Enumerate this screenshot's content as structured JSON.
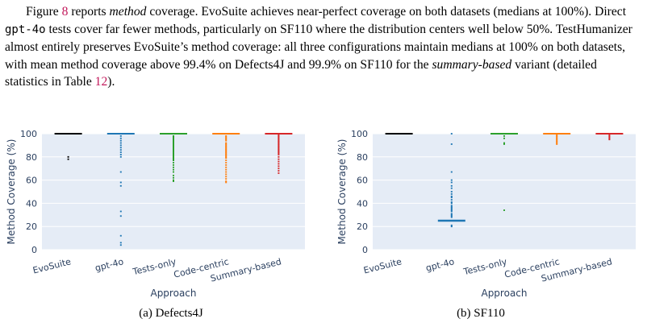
{
  "paragraph": {
    "t1": "Figure ",
    "ref_fig": "8",
    "t2": " reports ",
    "em1": "method",
    "t3": " coverage. EvoSuite achieves near-perfect coverage on both datasets (medians at 100%). Direct ",
    "code": "gpt-4o",
    "t4": " tests cover far fewer methods, particularly on SF110 where the distribution centers well below 50%. TestHumanizer almost entirely preserves EvoSuite’s method coverage: all three configurations maintain medians at 100% on both datasets, with mean method coverage above 99.4% on Defects4J and 99.9% on SF110 for the ",
    "em2": "summary-based",
    "t5": " variant (detailed statistics in Table ",
    "ref_table": "12",
    "t6": ")."
  },
  "captions": {
    "a": "(a) Defects4J",
    "b": "(b) SF110"
  },
  "colors": {
    "plot_bg": "#e5ecf6",
    "grid": "#ffffff",
    "series": [
      "#000000",
      "#1f77b4",
      "#2ca02c",
      "#ff7f0e",
      "#d62728"
    ]
  },
  "chart_data": [
    {
      "type": "box",
      "subfigure": "Defects4J",
      "xlabel": "Approach",
      "ylabel": "Method Coverage (%)",
      "ylim": [
        0,
        100
      ],
      "yticks": [
        0,
        20,
        40,
        60,
        80,
        100
      ],
      "categories": [
        "EvoSuite",
        "gpt-4o",
        "Tests-only",
        "Code-centric",
        "Summary-based"
      ],
      "grid": true,
      "medians": [
        100,
        100,
        100,
        100,
        100
      ],
      "q1": [
        100,
        100,
        100,
        100,
        100
      ],
      "outliers": [
        [
          80,
          78
        ],
        [
          98,
          96,
          94,
          92,
          90,
          88,
          86,
          84,
          82,
          80,
          67,
          58,
          55,
          33,
          29,
          12,
          6,
          4
        ],
        [
          98,
          97,
          96,
          95,
          94,
          93,
          92,
          91,
          90,
          89,
          88,
          87,
          86,
          85,
          84,
          83,
          82,
          81,
          80,
          79,
          78,
          77,
          75,
          73,
          71,
          69,
          67,
          64,
          62,
          60,
          59
        ],
        [
          98,
          97,
          96,
          95,
          94,
          92,
          91,
          90,
          89,
          88,
          87,
          86,
          85,
          84,
          83,
          82,
          81,
          80,
          79,
          77,
          75,
          73,
          71,
          69,
          67,
          65,
          63,
          61,
          59,
          58
        ],
        [
          99,
          98,
          97,
          96,
          95,
          94,
          93,
          92,
          91,
          90,
          89,
          88,
          87,
          86,
          85,
          84,
          83,
          82,
          80,
          78,
          76,
          74,
          72,
          70,
          68,
          66
        ]
      ]
    },
    {
      "type": "box",
      "subfigure": "SF110",
      "xlabel": "Approach",
      "ylabel": "Method Coverage (%)",
      "ylim": [
        0,
        100
      ],
      "yticks": [
        0,
        20,
        40,
        60,
        80,
        100
      ],
      "categories": [
        "EvoSuite",
        "gpt-4o",
        "Tests-only",
        "Code-centric",
        "Summary-based"
      ],
      "grid": true,
      "medians": [
        100,
        25,
        100,
        100,
        100
      ],
      "q1": [
        100,
        25,
        100,
        100,
        100
      ],
      "outliers": [
        [],
        [
          100,
          91,
          67,
          60,
          58,
          55,
          53,
          50,
          48,
          46,
          45,
          43,
          41,
          40,
          38,
          37,
          36,
          35,
          34,
          33,
          31,
          30,
          29,
          28,
          21,
          20
        ],
        [
          98,
          96,
          92,
          91,
          34
        ],
        [
          99,
          98,
          97,
          96,
          95,
          94,
          93,
          92,
          91
        ],
        [
          99,
          98,
          97,
          96,
          95
        ]
      ]
    }
  ]
}
